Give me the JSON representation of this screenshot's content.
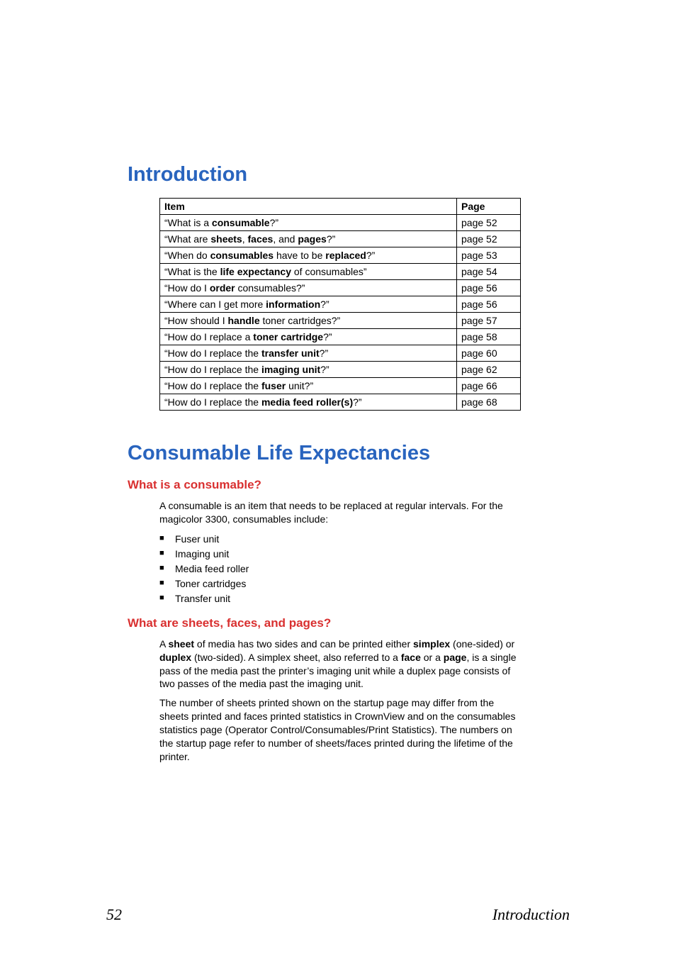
{
  "headings": {
    "intro": "Introduction",
    "consumable": "Consumable Life Expectancies"
  },
  "subheadings": {
    "what_consumable": "What is a consumable?",
    "what_sheets": "What are sheets, faces, and pages?"
  },
  "table": {
    "header": {
      "item": "Item",
      "page": "Page"
    },
    "rows": [
      {
        "item_pre": "“What is a ",
        "item_bold": "consumable",
        "item_post": "?”",
        "page": "page 52"
      },
      {
        "item_pre": "“What are ",
        "item_bold": "sheets",
        "item_mid1": ", ",
        "item_bold2": "faces",
        "item_mid2": ", and ",
        "item_bold3": "pages",
        "item_post": "?”",
        "page": "page 52"
      },
      {
        "item_pre": "“When do ",
        "item_bold": "consumables",
        "item_mid1": " have to be ",
        "item_bold2": "replaced",
        "item_post": "?”",
        "page": "page 53"
      },
      {
        "item_pre": "“What is the ",
        "item_bold": "life expectancy",
        "item_post": " of consumables”",
        "page": "page 54"
      },
      {
        "item_pre": "“How do I ",
        "item_bold": "order",
        "item_post": " consumables?”",
        "page": "page 56"
      },
      {
        "item_pre": "“Where can I get more ",
        "item_bold": "information",
        "item_post": "?”",
        "page": "page 56"
      },
      {
        "item_pre": "“How should I ",
        "item_bold": "handle",
        "item_post": " toner cartridges?”",
        "page": "page 57"
      },
      {
        "item_pre": "“How do I replace a ",
        "item_bold": "toner cartridge",
        "item_post": "?”",
        "page": "page 58"
      },
      {
        "item_pre": "“How do I replace the ",
        "item_bold": "transfer unit",
        "item_post": "?”",
        "page": "page 60"
      },
      {
        "item_pre": "“How do I replace the ",
        "item_bold": "imaging unit",
        "item_post": "?”",
        "page": "page 62"
      },
      {
        "item_pre": "“How do I replace the ",
        "item_bold": "fuser",
        "item_post": " unit?”",
        "page": "page 66"
      },
      {
        "item_pre": "“How do I replace the ",
        "item_bold": "media feed roller(s)",
        "item_post": "?”",
        "page": "page 68"
      }
    ]
  },
  "paragraphs": {
    "consumable_intro": "A consumable is an item that needs to be replaced at regular intervals. For the magicolor 3300, consumables include:",
    "sheets_p1_a": "A ",
    "sheets_p1_b": "sheet",
    "sheets_p1_c": " of media has two sides and can be printed either ",
    "sheets_p1_d": "simplex",
    "sheets_p1_e": " (one-sided) or ",
    "sheets_p1_f": "duplex",
    "sheets_p1_g": " (two-sided). A simplex sheet, also referred to a ",
    "sheets_p1_h": "face",
    "sheets_p1_i": " or a ",
    "sheets_p1_j": "page",
    "sheets_p1_k": ", is a single pass of the media past the printer’s imaging unit while a duplex page consists of two passes of the media past the imaging unit.",
    "sheets_p2": "The number of sheets printed shown on the startup page may differ from the sheets printed and faces printed statistics in CrownView and on the consumables statistics page (Operator Control/Consumables/Print Statistics). The numbers on the startup page refer to number of sheets/faces printed during the lifetime of the printer."
  },
  "bullets": [
    "Fuser unit",
    "Imaging unit",
    "Media feed roller",
    "Toner cartridges",
    "Transfer unit"
  ],
  "footer": {
    "page": "52",
    "label": "Introduction"
  }
}
